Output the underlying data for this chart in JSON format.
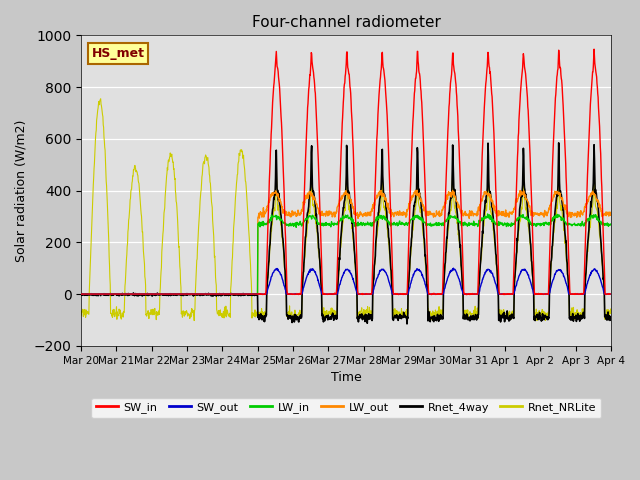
{
  "title": "Four-channel radiometer",
  "ylabel": "Solar radiation (W/m2)",
  "xlabel": "Time",
  "annotation": "HS_met",
  "ylim": [
    -200,
    1000
  ],
  "yticks": [
    -200,
    0,
    200,
    400,
    600,
    800,
    1000
  ],
  "xtick_labels": [
    "Mar 20",
    "Mar 21",
    "Mar 22",
    "Mar 23",
    "Mar 24",
    "Mar 25",
    "Mar 26",
    "Mar 27",
    "Mar 28",
    "Mar 29",
    "Mar 30",
    "Mar 31",
    "Apr 1",
    "Apr 2",
    "Apr 3",
    "Apr 4"
  ],
  "fig_bg_color": "#c8c8c8",
  "plot_bg_color": "#e0e0e0",
  "legend": [
    "SW_in",
    "SW_out",
    "LW_in",
    "LW_out",
    "Rnet_4way",
    "Rnet_NRLite"
  ],
  "legend_colors": [
    "#ff0000",
    "#0000cc",
    "#00cc00",
    "#ff8800",
    "#000000",
    "#cccc00"
  ]
}
